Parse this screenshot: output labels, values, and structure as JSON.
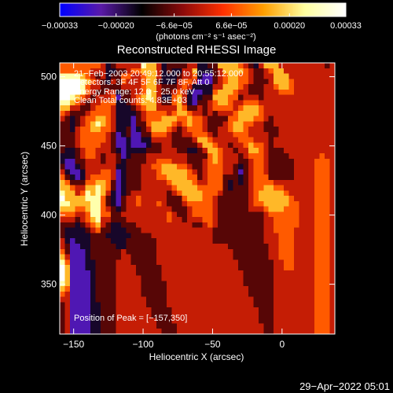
{
  "chart_data": {
    "type": "heatmap",
    "title": "Reconstructed RHESSI Image",
    "xlabel": "Heliocentric X (arcsec)",
    "ylabel": "Heliocentric Y (arcsec)",
    "xlim": [
      -160,
      38
    ],
    "ylim": [
      314,
      510
    ],
    "x_ticks": [
      {
        "value": -150,
        "label": "−150"
      },
      {
        "value": -100,
        "label": "−100"
      },
      {
        "value": -50,
        "label": "−50"
      },
      {
        "value": 0,
        "label": "0"
      }
    ],
    "y_ticks": [
      {
        "value": 350,
        "label": "350"
      },
      {
        "value": 400,
        "label": "400"
      },
      {
        "value": 450,
        "label": "450"
      },
      {
        "value": 500,
        "label": "500"
      }
    ],
    "annotations": [
      "21−Feb−2003 20:49:12.000 to 20:55:12.000",
      "Detectors: 3F 4F 5F 6F 7F 8F, Att 0",
      "Energy Range: 12.0 − 25.0 keV",
      "Clean    Total counts: 4.83E+03"
    ],
    "peak_label": "Position of Peak = [−157,350]",
    "peak_position": [
      -157,
      350
    ],
    "colorbar": {
      "min": -0.00033,
      "max": 0.00033,
      "ticks": [
        {
          "value": -0.00033,
          "label": "−0.00033"
        },
        {
          "value": -0.0002,
          "label": "−0.00020"
        },
        {
          "value": -6.6e-05,
          "label": "−6.6e−05"
        },
        {
          "value": 6.6e-05,
          "label": "6.6e−05"
        },
        {
          "value": 0.0002,
          "label": "0.00020"
        },
        {
          "value": 0.00033,
          "label": "0.00033"
        }
      ],
      "unit_label": "(photons cm⁻² s⁻¹ asec⁻²)",
      "colors": [
        "#0000ff",
        "#5a1aa8",
        "#000000",
        "#8b0a0a",
        "#ff3000",
        "#ffa000",
        "#ffffa0",
        "#ffffff"
      ]
    },
    "grid": false,
    "note_values": "Grid cell values are fractions of the colour scale (0 = min, 1 = max) read approximately from the image; 54 columns x 51 rows, row 0 at the top.",
    "grid_values": [
      "555555554234444476642333344223366665432466644444444434",
      "555555444223345566642322446222346666543345664444444444",
      "777765434233554456642223445211345665543344666444444444",
      "888876543243544456632224554111345665543334666544444444",
      "888875443333444456643334542222446665433344566544444444",
      "888875433442334457643345421122566654433344455544444444",
      "887654344451334567642256421233666553444344444444444444",
      "776543445552234566643356421334566544555444444444444444",
      "664433455542223456644446533434555545666544444444444444",
      "543334555542222345555456654434344456666544444444444444",
      "432345566542221345556665565543333556665543444444444444",
      "332345676542221335666654565543334566554433444444444444",
      "332455665542231234666543455543344566544433344444444444",
      "333455555431231133555433445554344455544443344444444444",
      "333455555431121122444433334665444445554443444444444444",
      "333455554431121112334433333466544344565543444444444444",
      "322345544432122223334443322346654434466543334444444444",
      "222345543443123334444444433335654443455543333444444544",
      "211334443443233334455544433345654443345543333344445554",
      "311234444442233344556665543345554432345543333344445554",
      "421124445541233344456666654345554431345543333344445554",
      "532124555541233344455666655345553332345553333344445554",
      "653335566531233344444566665445553232345555444444445554",
      "665446676531233344444456666555553233345566554444445554",
      "766457676421234444444345666655543333345666665444445554",
      "866667775321344544444333566655433333345666666544445554",
      "776666775321344544454333455555433333345566666554445554",
      "666556775432344444444433345555433333344456665554445554",
      "555445775533444444444543345555433333333345555554445554",
      "444345674433344444444544344455433333333344555554445554",
      "333234564322333444444444443345433333333344555554445554",
      "322223453322233344444444444444333333333344555544445554",
      "322222333222223333444444444444333333333344455544445554",
      "421222333322233333344444444444333333333344455544445554",
      "431122333332233333344444444444444333333334455544445554",
      "531112333333433333344444444444444433333334455544445554",
      "641112333333443333344444444444444433333334455544445554",
      "751112233334443333344444444444444443333333445544445554",
      "861112233334444333334444444444444443333333445544445554",
      "861111233334444333334444444444444444333333444444445554",
      "861111233334444433334444444444444444333333444444445554",
      "761111233334444433333444444444444444333333444444445554",
      "651111233334444433333444444444444444433333444444445554",
      "541111233334444433333444444444444444433333444444445554",
      "441111233334444443333444444444444444443333444444445554",
      "341111223334444443333444444444444444443333444444445554",
      "341111223334444444333344444444444444444333444444445554",
      "341111223334444444333344444444444444444333444444445554",
      "341111223334444444433344444444444444444333444444445554",
      "341111223334444444433334444444444444444433444444445554",
      "341111223334444444443334444444444444444433444444445554"
    ]
  },
  "footer": {
    "timestamp": "29−Apr−2022 05:01"
  }
}
